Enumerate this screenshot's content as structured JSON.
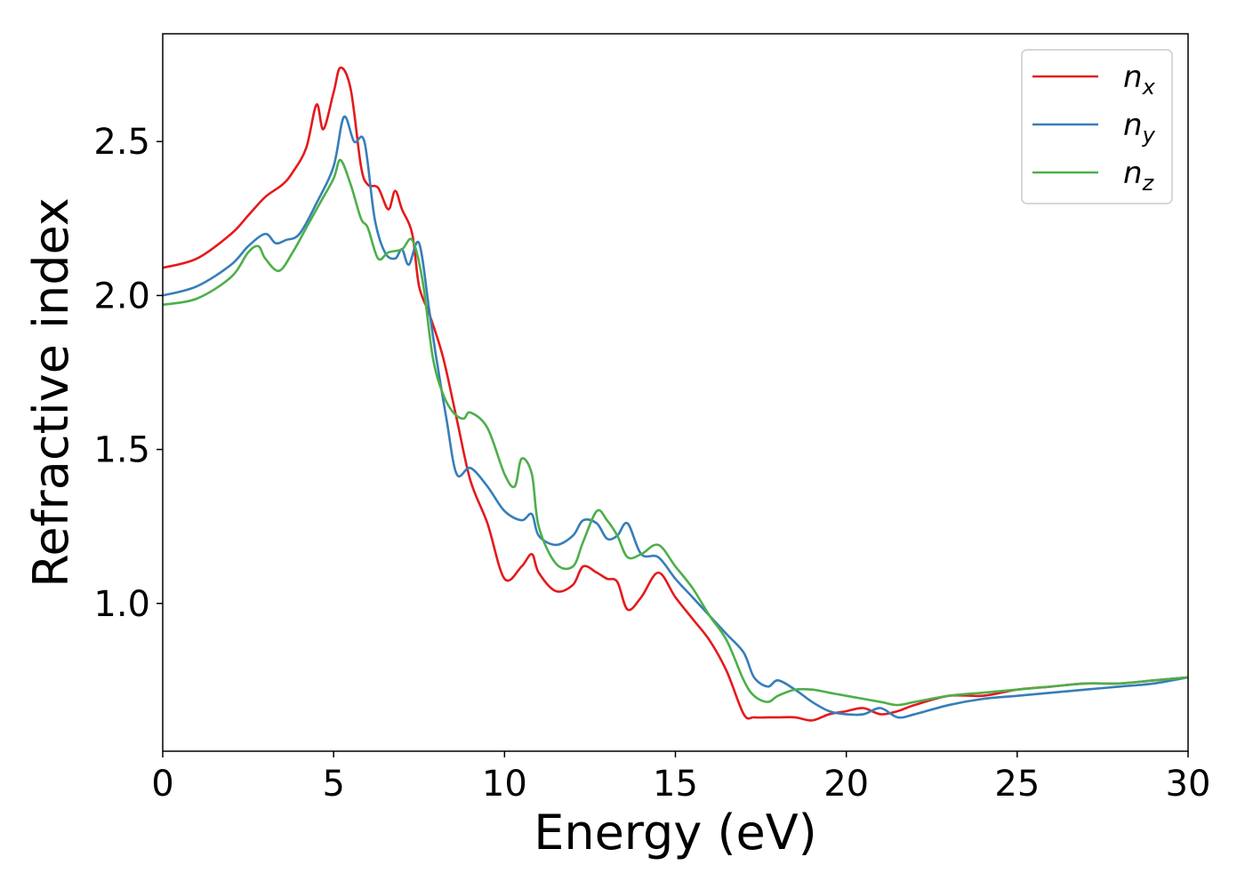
{
  "chart_data": {
    "type": "line",
    "xlabel": "Energy (eV)",
    "ylabel": "Refractive index",
    "xlim": [
      0,
      30
    ],
    "ylim": [
      0.52,
      2.85
    ],
    "xticks": [
      0,
      5,
      10,
      15,
      20,
      25,
      30
    ],
    "xtick_labels": [
      "0",
      "5",
      "10",
      "15",
      "20",
      "25",
      "30"
    ],
    "yticks": [
      1.0,
      1.5,
      2.0,
      2.5
    ],
    "ytick_labels": [
      "1.0",
      "1.5",
      "2.0",
      "2.5"
    ],
    "grid": false,
    "legend_position": "top-right",
    "series": [
      {
        "name": "n",
        "subscript": "x",
        "color": "#e41a1c",
        "x": [
          0,
          1,
          2,
          2.5,
          3,
          3.5,
          3.8,
          4.2,
          4.5,
          4.7,
          5.0,
          5.2,
          5.5,
          5.8,
          6.0,
          6.3,
          6.6,
          6.8,
          7.0,
          7.3,
          7.5,
          7.8,
          8.2,
          8.6,
          9.0,
          9.5,
          10.0,
          10.5,
          10.8,
          11.0,
          11.5,
          12.0,
          12.3,
          12.7,
          13.0,
          13.3,
          13.6,
          14.0,
          14.5,
          15.0,
          15.5,
          16.0,
          16.5,
          17.0,
          17.3,
          17.7,
          18.0,
          18.5,
          19.0,
          19.5,
          20.0,
          20.5,
          21.0,
          21.5,
          22.0,
          23.0,
          24.0,
          25.0,
          26.0,
          27.0,
          28.0,
          29.0,
          30.0
        ],
        "y": [
          2.09,
          2.12,
          2.2,
          2.26,
          2.32,
          2.36,
          2.4,
          2.48,
          2.62,
          2.54,
          2.66,
          2.74,
          2.67,
          2.42,
          2.36,
          2.35,
          2.28,
          2.34,
          2.28,
          2.2,
          2.03,
          1.94,
          1.8,
          1.6,
          1.4,
          1.26,
          1.08,
          1.12,
          1.16,
          1.1,
          1.04,
          1.06,
          1.12,
          1.1,
          1.08,
          1.07,
          0.98,
          1.02,
          1.1,
          1.02,
          0.95,
          0.88,
          0.78,
          0.64,
          0.63,
          0.63,
          0.63,
          0.63,
          0.62,
          0.64,
          0.65,
          0.66,
          0.64,
          0.65,
          0.67,
          0.7,
          0.7,
          0.72,
          0.73,
          0.74,
          0.74,
          0.75,
          0.76
        ]
      },
      {
        "name": "n",
        "subscript": "y",
        "color": "#377eb8",
        "x": [
          0,
          1,
          2,
          2.5,
          3,
          3.3,
          3.6,
          4.0,
          4.5,
          5.0,
          5.3,
          5.6,
          5.9,
          6.2,
          6.5,
          6.8,
          7.0,
          7.2,
          7.5,
          7.8,
          8.0,
          8.3,
          8.6,
          9.0,
          9.5,
          10.0,
          10.5,
          10.8,
          11.0,
          11.5,
          12.0,
          12.3,
          12.7,
          13.0,
          13.3,
          13.6,
          14.0,
          14.5,
          15.0,
          15.5,
          16.0,
          16.5,
          17.0,
          17.3,
          17.7,
          18.0,
          18.5,
          19.0,
          19.5,
          20.0,
          20.5,
          21.0,
          21.5,
          22.0,
          23.0,
          24.0,
          25.0,
          26.0,
          27.0,
          28.0,
          29.0,
          30.0
        ],
        "y": [
          2.0,
          2.03,
          2.1,
          2.16,
          2.2,
          2.17,
          2.18,
          2.2,
          2.3,
          2.42,
          2.58,
          2.5,
          2.5,
          2.25,
          2.14,
          2.12,
          2.15,
          2.1,
          2.17,
          1.95,
          1.8,
          1.6,
          1.42,
          1.44,
          1.38,
          1.3,
          1.27,
          1.29,
          1.22,
          1.19,
          1.22,
          1.27,
          1.26,
          1.21,
          1.22,
          1.26,
          1.16,
          1.15,
          1.08,
          1.02,
          0.96,
          0.9,
          0.84,
          0.76,
          0.73,
          0.75,
          0.72,
          0.68,
          0.65,
          0.64,
          0.64,
          0.66,
          0.63,
          0.64,
          0.67,
          0.69,
          0.7,
          0.71,
          0.72,
          0.73,
          0.74,
          0.76
        ]
      },
      {
        "name": "n",
        "subscript": "z",
        "color": "#4daf4a",
        "x": [
          0,
          1,
          2,
          2.5,
          2.8,
          3.0,
          3.4,
          3.8,
          4.2,
          4.6,
          5.0,
          5.2,
          5.5,
          5.8,
          6.0,
          6.3,
          6.6,
          7.0,
          7.3,
          7.6,
          7.9,
          8.2,
          8.5,
          8.8,
          9.0,
          9.5,
          10.0,
          10.3,
          10.5,
          10.8,
          11.0,
          11.5,
          12.0,
          12.3,
          12.7,
          13.0,
          13.3,
          13.6,
          14.0,
          14.5,
          15.0,
          15.5,
          16.0,
          16.5,
          17.0,
          17.3,
          17.7,
          18.0,
          18.5,
          19.0,
          19.5,
          20.0,
          21.0,
          21.5,
          22.0,
          23.0,
          24.0,
          25.0,
          26.0,
          27.0,
          28.0,
          29.0,
          30.0
        ],
        "y": [
          1.97,
          1.99,
          2.06,
          2.14,
          2.16,
          2.12,
          2.08,
          2.14,
          2.22,
          2.3,
          2.38,
          2.44,
          2.36,
          2.25,
          2.22,
          2.12,
          2.14,
          2.15,
          2.18,
          2.05,
          1.8,
          1.68,
          1.62,
          1.6,
          1.62,
          1.57,
          1.42,
          1.38,
          1.47,
          1.42,
          1.25,
          1.13,
          1.12,
          1.2,
          1.3,
          1.27,
          1.22,
          1.15,
          1.16,
          1.19,
          1.12,
          1.05,
          0.96,
          0.88,
          0.75,
          0.7,
          0.68,
          0.7,
          0.72,
          0.72,
          0.71,
          0.7,
          0.68,
          0.67,
          0.68,
          0.7,
          0.71,
          0.72,
          0.73,
          0.74,
          0.74,
          0.75,
          0.76
        ]
      }
    ]
  }
}
